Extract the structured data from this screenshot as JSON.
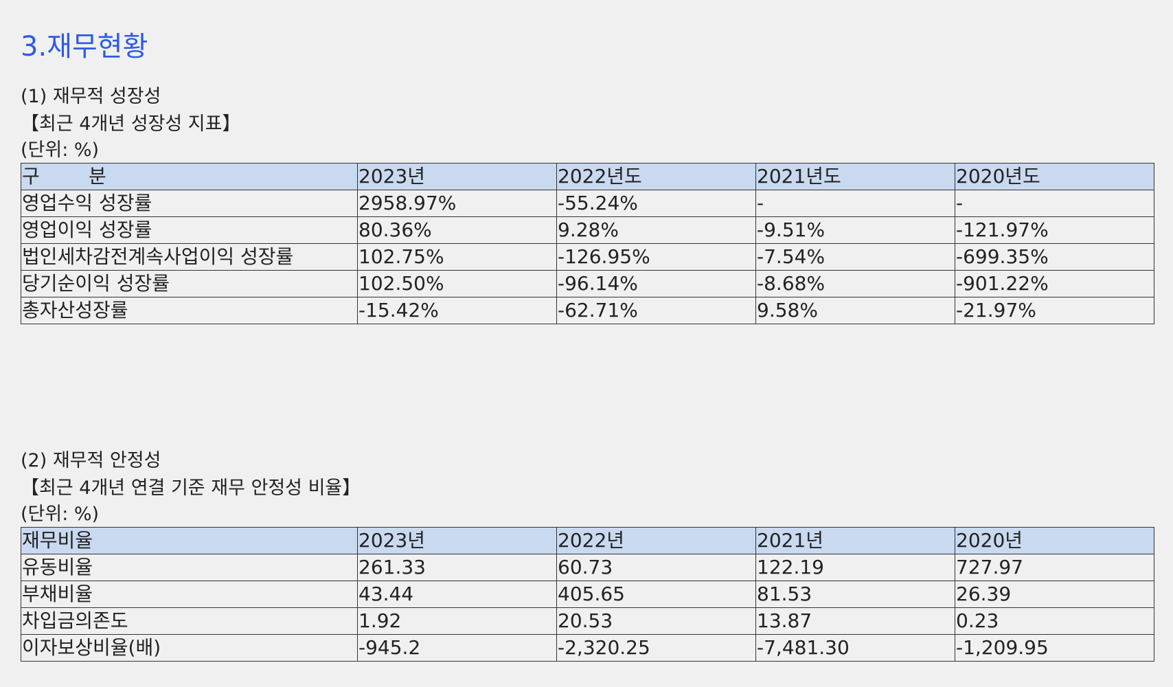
{
  "section_title": "3.재무현황",
  "growth": {
    "heading": "(1) 재무적 성장성",
    "subtitle": "【최근 4개년 성장성 지표】",
    "unit": "(단위: %)",
    "columns": [
      "구        분",
      "2023년",
      "2022년도",
      "2021년도",
      "2020년도"
    ],
    "rows": [
      [
        "영업수익 성장률",
        "2958.97%",
        "-55.24%",
        "-",
        "-"
      ],
      [
        "영업이익 성장률",
        "80.36%",
        "9.28%",
        "-9.51%",
        "-121.97%"
      ],
      [
        "법인세차감전계속사업이익 성장률",
        "102.75%",
        "-126.95%",
        "-7.54%",
        "-699.35%"
      ],
      [
        "당기순이익 성장률",
        "102.50%",
        "-96.14%",
        "-8.68%",
        "-901.22%"
      ],
      [
        "총자산성장률",
        "-15.42%",
        "-62.71%",
        "9.58%",
        "-21.97%"
      ]
    ]
  },
  "stability": {
    "heading": "(2) 재무적 안정성",
    "subtitle": "【최근 4개년 연결 기준 재무 안정성 비율】",
    "unit": "(단위: %)",
    "columns": [
      "재무비율",
      "2023년",
      "2022년",
      "2021년",
      "2020년"
    ],
    "rows": [
      [
        "유동비율",
        "261.33",
        "60.73",
        "122.19",
        "727.97"
      ],
      [
        "부채비율",
        "43.44",
        "405.65",
        "81.53",
        "26.39"
      ],
      [
        "차입금의존도",
        "1.92",
        "20.53",
        "13.87",
        "0.23"
      ],
      [
        "이자보상비율(배)",
        "-945.2",
        "-2,320.25",
        "-7,481.30",
        "-1,209.95"
      ]
    ]
  },
  "colors": {
    "title": "#2f5be3",
    "header_bg": "#c9d9f0",
    "page_bg": "#f0f0f0"
  }
}
